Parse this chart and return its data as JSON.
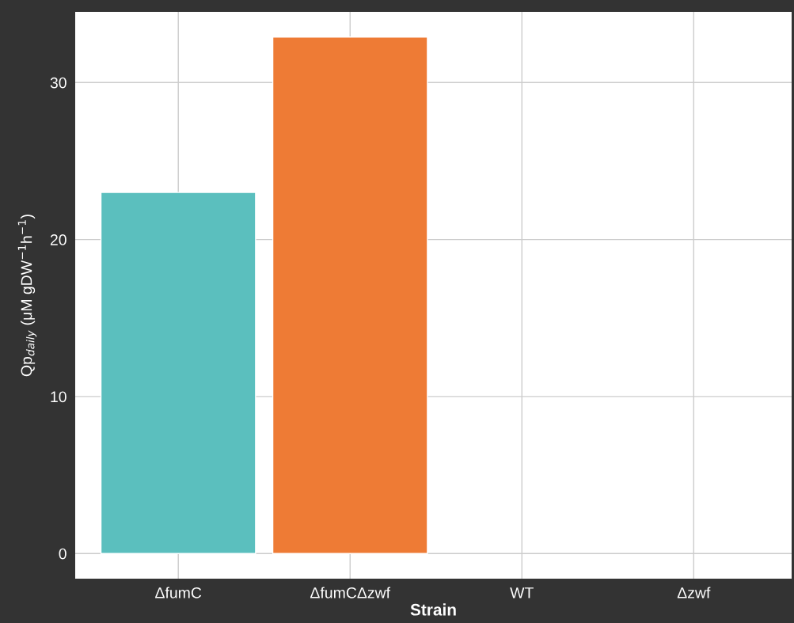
{
  "chart_data": {
    "type": "bar",
    "categories": [
      "ΔfumC",
      "ΔfumCΔzwf",
      "WT",
      "Δzwf"
    ],
    "values": [
      23.0,
      32.9,
      null,
      null
    ],
    "colors": [
      "#5bbfbe",
      "#ee7b35",
      "#5bbfbe",
      "#ee7b35"
    ],
    "xlabel": "Strain",
    "ylabel": "Qp$_{daily}$ (μM gDW$^{−1}$h$^{−1}$)",
    "ylim": [
      -1.6,
      34.5
    ],
    "yticks": [
      0,
      10,
      20,
      30
    ],
    "grid": true,
    "legend": false
  }
}
